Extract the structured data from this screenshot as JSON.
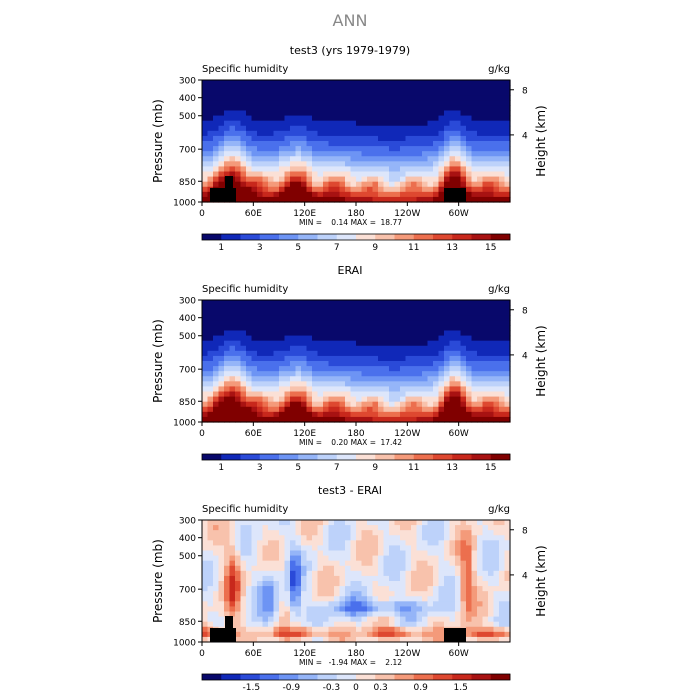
{
  "figure_title": "ANN",
  "chart_data": [
    {
      "type": "heatmap",
      "title": "test3 (yrs 1979-1979)",
      "left_label": "Specific humidity",
      "units": "g/kg",
      "ylabel": "Pressure (mb)",
      "ylabel_right": "Height (km)",
      "pressure_ticks": [
        "300",
        "400",
        "500",
        "700",
        "850",
        "1000"
      ],
      "height_ticks": [
        "8",
        "4"
      ],
      "x_ticks": [
        "0",
        "60E",
        "120E",
        "180",
        "120W",
        "60W"
      ],
      "stats": {
        "min_label": "MIN =",
        "min": "0.14",
        "max_label": "MAX =",
        "max": "18.77"
      },
      "colorbar_ticks": [
        "1",
        "3",
        "5",
        "7",
        "9",
        "11",
        "13",
        "15"
      ],
      "colors": [
        "#08086b",
        "#1028b8",
        "#2a4ad8",
        "#4a70ec",
        "#6d94f4",
        "#95b5f8",
        "#bdd2fa",
        "#dde6fb",
        "#fbe0d6",
        "#f8c2ac",
        "#f49a7a",
        "#ec6f4e",
        "#de4830",
        "#c8281c",
        "#a81212",
        "#800000"
      ]
    },
    {
      "type": "heatmap",
      "title": "ERAI",
      "left_label": "Specific humidity",
      "units": "g/kg",
      "ylabel": "Pressure (mb)",
      "ylabel_right": "Height (km)",
      "pressure_ticks": [
        "300",
        "400",
        "500",
        "700",
        "850",
        "1000"
      ],
      "height_ticks": [
        "8",
        "4"
      ],
      "x_ticks": [
        "0",
        "60E",
        "120E",
        "180",
        "120W",
        "60W"
      ],
      "stats": {
        "min_label": "MIN =",
        "min": "0.20",
        "max_label": "MAX =",
        "max": "17.42"
      },
      "colorbar_ticks": [
        "1",
        "3",
        "5",
        "7",
        "9",
        "11",
        "13",
        "15"
      ],
      "colors": [
        "#08086b",
        "#1028b8",
        "#2a4ad8",
        "#4a70ec",
        "#6d94f4",
        "#95b5f8",
        "#bdd2fa",
        "#dde6fb",
        "#fbe0d6",
        "#f8c2ac",
        "#f49a7a",
        "#ec6f4e",
        "#de4830",
        "#c8281c",
        "#a81212",
        "#800000"
      ]
    },
    {
      "type": "heatmap",
      "title": "test3 - ERAI",
      "left_label": "Specific humidity",
      "units": "g/kg",
      "ylabel": "Pressure (mb)",
      "ylabel_right": "Height (km)",
      "pressure_ticks": [
        "300",
        "400",
        "500",
        "700",
        "850",
        "1000"
      ],
      "height_ticks": [
        "8",
        "4"
      ],
      "x_ticks": [
        "0",
        "60E",
        "120E",
        "180",
        "120W",
        "60W"
      ],
      "stats": {
        "min_label": "MIN =",
        "min": "-1.94",
        "max_label": "MAX =",
        "max": "2.12"
      },
      "colorbar_ticks": [
        "-1.5",
        "-0.9",
        "-0.3",
        "0",
        "0.3",
        "0.9",
        "1.5"
      ],
      "colors": [
        "#08086b",
        "#1028b8",
        "#2a4ad8",
        "#4a70ec",
        "#6d94f4",
        "#95b5f8",
        "#bdd2fa",
        "#dde6fb",
        "#fbe0d6",
        "#f8c2ac",
        "#f49a7a",
        "#ec6f4e",
        "#de4830",
        "#c8281c",
        "#a81212",
        "#800000"
      ]
    }
  ]
}
